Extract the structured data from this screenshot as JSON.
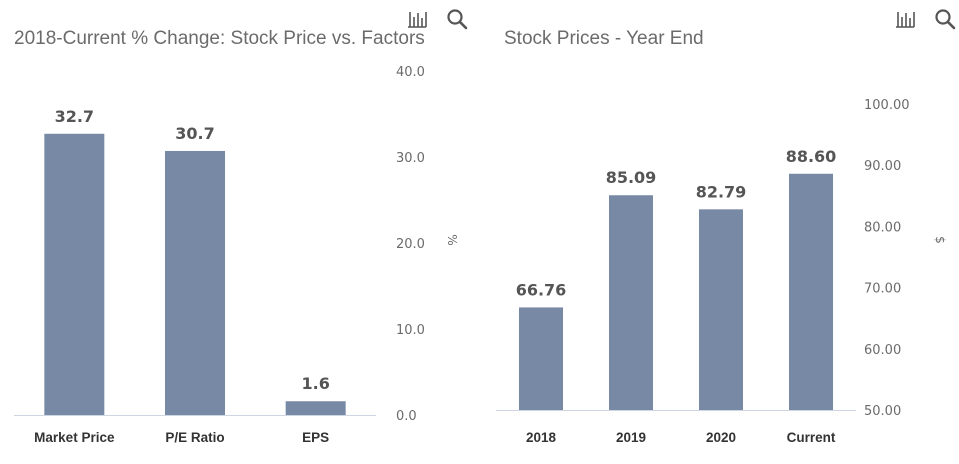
{
  "chart_data": [
    {
      "type": "bar",
      "title": "2018-Current % Change: Stock Price vs. Factors",
      "categories": [
        "Market Price",
        "P/E Ratio",
        "EPS"
      ],
      "values": [
        32.7,
        30.7,
        1.6
      ],
      "value_labels": [
        "32.7",
        "30.7",
        "1.6"
      ],
      "ylim": [
        0,
        40
      ],
      "yticks": [
        "0.0",
        "10.0",
        "20.0",
        "30.0",
        "40.0"
      ],
      "ytick_values": [
        0,
        10,
        20,
        30,
        40
      ],
      "ylabel": "%",
      "y_axis_side": "right",
      "bar_color": "#7889a5",
      "grid": false
    },
    {
      "type": "bar",
      "title": "Stock Prices - Year End",
      "categories": [
        "2018",
        "2019",
        "2020",
        "Current"
      ],
      "values": [
        66.76,
        85.09,
        82.79,
        88.6
      ],
      "value_labels": [
        "66.76",
        "85.09",
        "82.79",
        "88.60"
      ],
      "ylim": [
        50,
        100
      ],
      "yticks": [
        "50.00",
        "60.00",
        "70.00",
        "80.00",
        "90.00",
        "100.00"
      ],
      "ytick_values": [
        50,
        60,
        70,
        80,
        90,
        100
      ],
      "ylabel": "$",
      "y_axis_side": "right",
      "bar_color": "#7889a5",
      "grid": false
    }
  ],
  "toolbar": {
    "icons": [
      "bar-chart-icon",
      "search-icon"
    ],
    "icon_color": "#555555"
  }
}
